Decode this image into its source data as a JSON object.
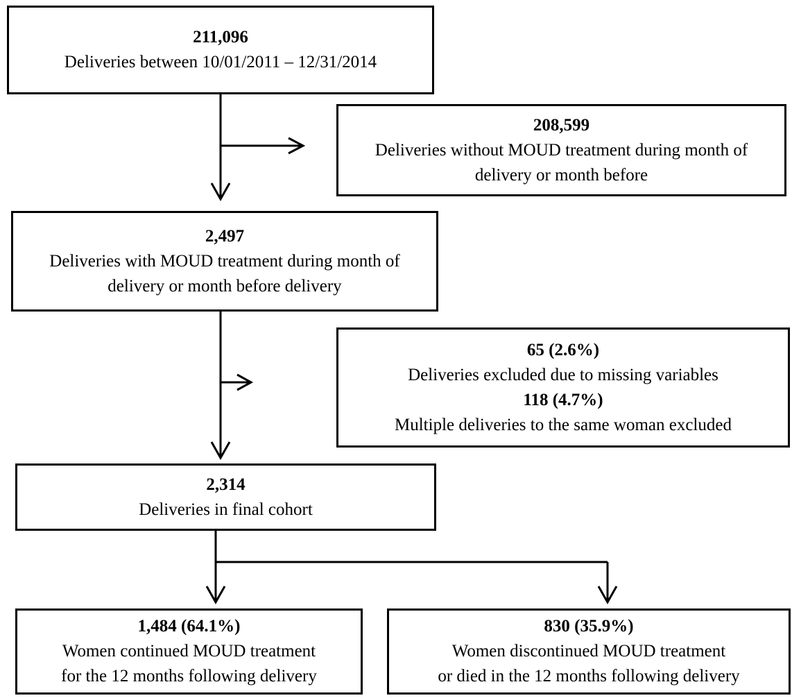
{
  "colors": {
    "line": "#000000",
    "background": "#ffffff"
  },
  "boxes": {
    "deliveries_total": {
      "count": "211,096",
      "label": "Deliveries between 10/01/2011 – 12/31/2014"
    },
    "excluded_no_moud": {
      "count": "208,599",
      "label": "Deliveries without MOUD treatment during month of\ndelivery or month before"
    },
    "with_moud": {
      "count": "2,497",
      "label": "Deliveries with MOUD treatment during month of\ndelivery or month before delivery"
    },
    "excluded_other": {
      "count_1": "65 (2.6%)",
      "label_1": "Deliveries excluded due to missing variables",
      "count_2": "118 (4.7%)",
      "label_2": "Multiple deliveries to the same woman excluded"
    },
    "final_cohort": {
      "count": "2,314",
      "label": "Deliveries in final cohort"
    },
    "continued": {
      "count": "1,484 (64.1%)",
      "label": "Women continued MOUD treatment\nfor the 12 months following delivery"
    },
    "discontinued": {
      "count": "830 (35.9%)",
      "label": "Women discontinued MOUD treatment\nor died in the 12 months following delivery"
    }
  }
}
